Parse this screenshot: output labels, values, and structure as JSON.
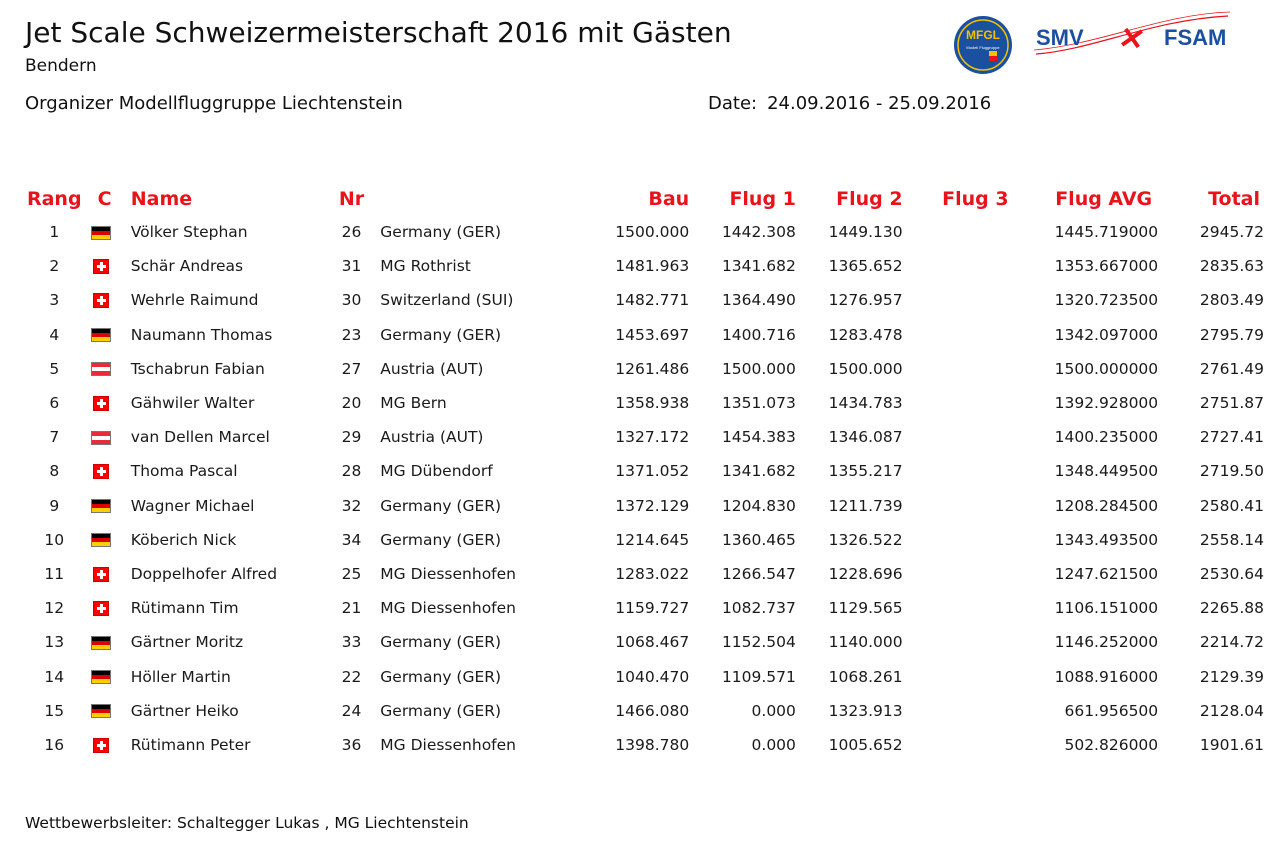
{
  "header": {
    "title": "Jet Scale Schweizermeisterschaft 2016 mit Gästen",
    "subtitle": "Bendern",
    "organizer": "Organizer Modellfluggruppe Liechtenstein",
    "date_label": "Date:",
    "date_value": "24.09.2016 - 25.09.2016"
  },
  "logos": {
    "mfgl_text": "MFGL",
    "mfgl_sub": "Modell Fluggruppe",
    "smv_text": "SMV",
    "fsam_text": "FSAM"
  },
  "colors": {
    "header_red": "#e8131b",
    "logo_blue": "#1b4fa0",
    "logo_red": "#e8131b"
  },
  "table": {
    "headers": {
      "rang": "Rang",
      "c": "C",
      "name": "Name",
      "nr": "Nr",
      "bau": "Bau",
      "flug1": "Flug 1",
      "flug2": "Flug 2",
      "flug3": "Flug 3",
      "avg": "Flug AVG",
      "total": "Total"
    },
    "rows": [
      {
        "rang": "1",
        "flag": "ger",
        "name": "Völker Stephan",
        "nr": "26",
        "club": "Germany (GER)",
        "bau": "1500.000",
        "f1": "1442.308",
        "f2": "1449.130",
        "f3": "",
        "avg": "1445.719000",
        "total": "2945.72"
      },
      {
        "rang": "2",
        "flag": "sui",
        "name": "Schär Andreas",
        "nr": "31",
        "club": "MG Rothrist",
        "bau": "1481.963",
        "f1": "1341.682",
        "f2": "1365.652",
        "f3": "",
        "avg": "1353.667000",
        "total": "2835.63"
      },
      {
        "rang": "3",
        "flag": "sui",
        "name": "Wehrle Raimund",
        "nr": "30",
        "club": "Switzerland (SUI)",
        "bau": "1482.771",
        "f1": "1364.490",
        "f2": "1276.957",
        "f3": "",
        "avg": "1320.723500",
        "total": "2803.49"
      },
      {
        "rang": "4",
        "flag": "ger",
        "name": "Naumann Thomas",
        "nr": "23",
        "club": "Germany (GER)",
        "bau": "1453.697",
        "f1": "1400.716",
        "f2": "1283.478",
        "f3": "",
        "avg": "1342.097000",
        "total": "2795.79"
      },
      {
        "rang": "5",
        "flag": "aut",
        "name": "Tschabrun Fabian",
        "nr": "27",
        "club": "Austria (AUT)",
        "bau": "1261.486",
        "f1": "1500.000",
        "f2": "1500.000",
        "f3": "",
        "avg": "1500.000000",
        "total": "2761.49"
      },
      {
        "rang": "6",
        "flag": "sui",
        "name": "Gähwiler Walter",
        "nr": "20",
        "club": "MG Bern",
        "bau": "1358.938",
        "f1": "1351.073",
        "f2": "1434.783",
        "f3": "",
        "avg": "1392.928000",
        "total": "2751.87"
      },
      {
        "rang": "7",
        "flag": "aut",
        "name": "van Dellen Marcel",
        "nr": "29",
        "club": "Austria (AUT)",
        "bau": "1327.172",
        "f1": "1454.383",
        "f2": "1346.087",
        "f3": "",
        "avg": "1400.235000",
        "total": "2727.41"
      },
      {
        "rang": "8",
        "flag": "sui",
        "name": "Thoma Pascal",
        "nr": "28",
        "club": "MG Dübendorf",
        "bau": "1371.052",
        "f1": "1341.682",
        "f2": "1355.217",
        "f3": "",
        "avg": "1348.449500",
        "total": "2719.50"
      },
      {
        "rang": "9",
        "flag": "ger",
        "name": "Wagner Michael",
        "nr": "32",
        "club": "Germany (GER)",
        "bau": "1372.129",
        "f1": "1204.830",
        "f2": "1211.739",
        "f3": "",
        "avg": "1208.284500",
        "total": "2580.41"
      },
      {
        "rang": "10",
        "flag": "ger",
        "name": "Köberich Nick",
        "nr": "34",
        "club": "Germany (GER)",
        "bau": "1214.645",
        "f1": "1360.465",
        "f2": "1326.522",
        "f3": "",
        "avg": "1343.493500",
        "total": "2558.14"
      },
      {
        "rang": "11",
        "flag": "sui",
        "name": "Doppelhofer Alfred",
        "nr": "25",
        "club": "MG Diessenhofen",
        "bau": "1283.022",
        "f1": "1266.547",
        "f2": "1228.696",
        "f3": "",
        "avg": "1247.621500",
        "total": "2530.64"
      },
      {
        "rang": "12",
        "flag": "sui",
        "name": "Rütimann Tim",
        "nr": "21",
        "club": "MG Diessenhofen",
        "bau": "1159.727",
        "f1": "1082.737",
        "f2": "1129.565",
        "f3": "",
        "avg": "1106.151000",
        "total": "2265.88"
      },
      {
        "rang": "13",
        "flag": "ger",
        "name": "Gärtner Moritz",
        "nr": "33",
        "club": "Germany (GER)",
        "bau": "1068.467",
        "f1": "1152.504",
        "f2": "1140.000",
        "f3": "",
        "avg": "1146.252000",
        "total": "2214.72"
      },
      {
        "rang": "14",
        "flag": "ger",
        "name": "Höller Martin",
        "nr": "22",
        "club": "Germany (GER)",
        "bau": "1040.470",
        "f1": "1109.571",
        "f2": "1068.261",
        "f3": "",
        "avg": "1088.916000",
        "total": "2129.39"
      },
      {
        "rang": "15",
        "flag": "ger",
        "name": "Gärtner Heiko",
        "nr": "24",
        "club": "Germany (GER)",
        "bau": "1466.080",
        "f1": "0.000",
        "f2": "1323.913",
        "f3": "",
        "avg": "661.956500",
        "total": "2128.04"
      },
      {
        "rang": "16",
        "flag": "sui",
        "name": "Rütimann Peter",
        "nr": "36",
        "club": "MG Diessenhofen",
        "bau": "1398.780",
        "f1": "0.000",
        "f2": "1005.652",
        "f3": "",
        "avg": "502.826000",
        "total": "1901.61"
      }
    ]
  },
  "footer": {
    "text": "Wettbewerbsleiter: Schaltegger Lukas , MG Liechtenstein"
  }
}
